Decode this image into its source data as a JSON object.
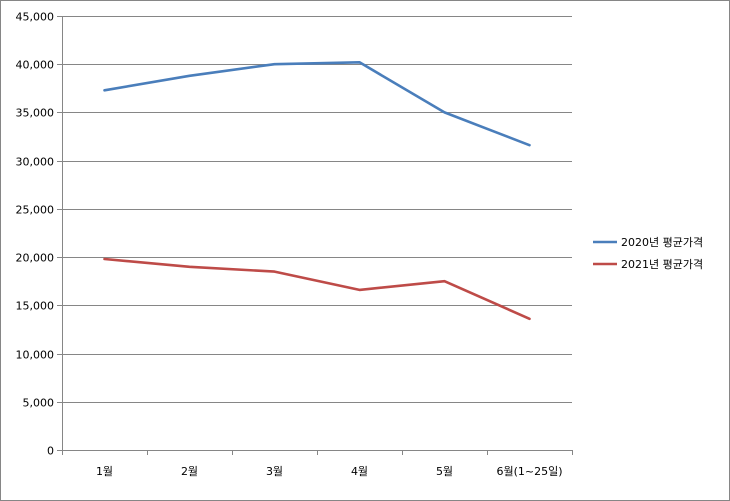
{
  "chart_data": {
    "type": "line",
    "categories": [
      "1월",
      "2월",
      "3월",
      "4월",
      "5월",
      "6월(1~25일)"
    ],
    "series": [
      {
        "name": "2020년 평균가격",
        "color": "#4a7ebb",
        "values": [
          37300,
          38800,
          40000,
          40200,
          35000,
          31600
        ]
      },
      {
        "name": "2021년 평균가격",
        "color": "#be4b48",
        "values": [
          19800,
          19000,
          18500,
          16600,
          17500,
          13600
        ]
      }
    ],
    "ylim": [
      0,
      45000
    ],
    "yticks": [
      "0",
      "5,000",
      "10,000",
      "15,000",
      "20,000",
      "25,000",
      "30,000",
      "35,000",
      "40,000",
      "45,000"
    ],
    "ytick_values": [
      0,
      5000,
      10000,
      15000,
      20000,
      25000,
      30000,
      35000,
      40000,
      45000
    ],
    "grid": true,
    "legend_position": "right"
  }
}
